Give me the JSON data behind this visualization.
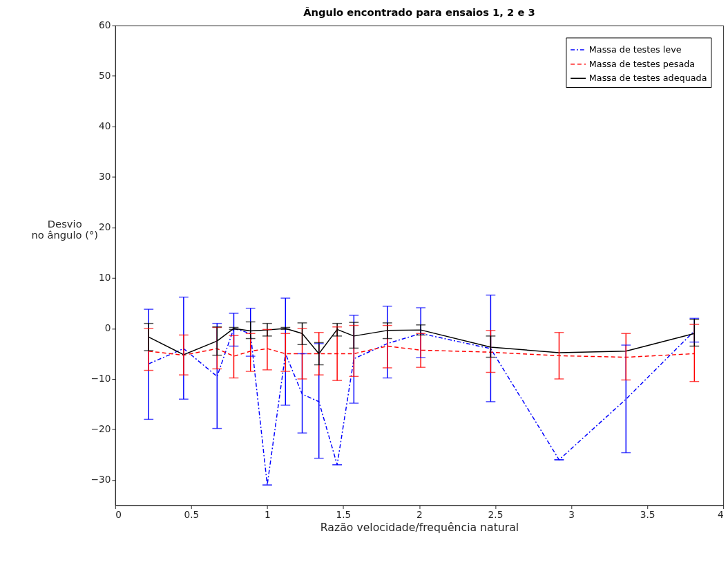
{
  "chart_data": {
    "type": "line",
    "title": "Ângulo encontrado para ensaios 1, 2 e 3",
    "xlabel": "Razão velocidade/frequência natural",
    "ylabel": "Desvio\nno ângulo (°)",
    "x": [
      0.22,
      0.45,
      0.67,
      0.78,
      0.89,
      1.0,
      1.12,
      1.23,
      1.34,
      1.46,
      1.57,
      1.79,
      2.01,
      2.47,
      2.92,
      3.36,
      3.81
    ],
    "xlim": [
      0,
      4
    ],
    "xticks": [
      0,
      0.5,
      1,
      1.5,
      2,
      2.5,
      3,
      3.5,
      4
    ],
    "ylim": [
      -35,
      60
    ],
    "yticks": [
      -30,
      -20,
      -10,
      0,
      10,
      20,
      30,
      40,
      50,
      60
    ],
    "grid": false,
    "legend": "top right",
    "marker": "none",
    "series": [
      {
        "name": "Massa de testes leve",
        "color": "#0000ff",
        "line_style": "dashdot",
        "values": [
          -7,
          -4,
          -9.5,
          0,
          -1,
          -31,
          -5,
          -13,
          -14.5,
          -27,
          -6,
          -3,
          -1,
          -4,
          -26,
          -14,
          -0.5
        ],
        "errors": [
          [
            -18,
            3.8
          ],
          [
            -14,
            6.2
          ],
          [
            -19.8,
            1
          ],
          [
            -3.5,
            3
          ],
          [
            -5.5,
            4
          ],
          [
            -31,
            -31
          ],
          [
            -15.2,
            6
          ],
          [
            -20.7,
            -5
          ],
          [
            -25.7,
            -3
          ],
          [
            -27,
            -27
          ],
          [
            -14.8,
            2.6
          ],
          [
            -9.8,
            4.4
          ],
          [
            -5.8,
            4.1
          ],
          [
            -14.5,
            6.6
          ],
          [
            -26,
            -26
          ],
          [
            -24.6,
            -3.3
          ],
          [
            -2.7,
            2
          ]
        ]
      },
      {
        "name": "Massa de testes pesada",
        "color": "#ff0000",
        "line_style": "dashed",
        "values": [
          -4.5,
          -5.3,
          -4,
          -5.5,
          -4.5,
          -4,
          -5,
          -5,
          -5,
          -5,
          -5,
          -3.5,
          -4.3,
          -4.7,
          -5.4,
          -5.7,
          -5
        ],
        "errors": [
          [
            -8.3,
            0
          ],
          [
            -9.2,
            -1.3
          ],
          [
            -8,
            0.2
          ],
          [
            -9.8,
            -1.4
          ],
          [
            -8.5,
            -1
          ],
          [
            -8.2,
            -0.2
          ],
          [
            -8.5,
            -1
          ],
          [
            -10,
            0
          ],
          [
            -9.2,
            -0.8
          ],
          [
            -10.3,
            0.3
          ],
          [
            -9.5,
            0.6
          ],
          [
            -7.8,
            0.6
          ],
          [
            -7.7,
            -1
          ],
          [
            -8.7,
            -0.4
          ],
          [
            -10,
            -0.8
          ],
          [
            -10.2,
            -1
          ],
          [
            -10.5,
            0.8
          ]
        ]
      },
      {
        "name": "Massa de testes adequada",
        "color": "#000000",
        "line_style": "solid",
        "values": [
          -1.7,
          -5.2,
          -2.5,
          0,
          -0.5,
          -0.3,
          0,
          -1,
          -5,
          -0.2,
          -1.5,
          -0.4,
          -0.3,
          -3.7,
          -4.8,
          -4.5,
          -1
        ],
        "errors": [
          [
            -4.4,
            1
          ],
          null,
          [
            -5.3,
            0.3
          ],
          [
            -0.2,
            0.2
          ],
          [
            -2,
            1.3
          ],
          [
            -1.5,
            1
          ],
          [
            -0.2,
            0.2
          ],
          [
            -3.2,
            1.1
          ],
          [
            -7.2,
            -2.8
          ],
          [
            -1.5,
            1
          ],
          [
            -3.9,
            1.2
          ],
          [
            -2,
            1.1
          ],
          [
            -1.3,
            0.7
          ],
          [
            -5.7,
            -1.5
          ],
          null,
          null,
          [
            -3.5,
            1.8
          ]
        ]
      }
    ]
  }
}
